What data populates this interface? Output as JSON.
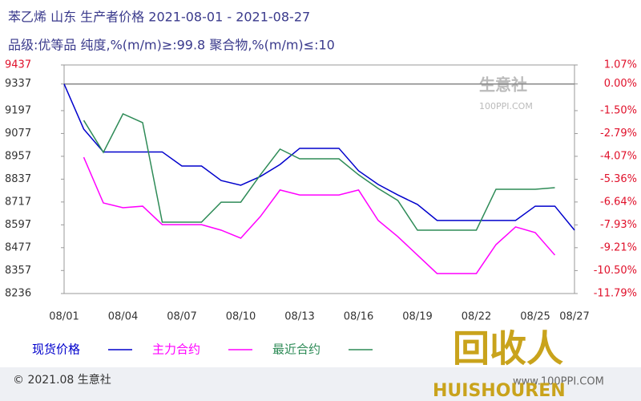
{
  "chart_data": {
    "type": "line",
    "title": "苯乙烯 山东 生产者价格 2021-08-01 - 2021-08-27",
    "subtitle": "品级:优等品 纯度,%(m/m)≥:99.8 聚合物,%(m/m)≤:10",
    "categories": [
      "08/01",
      null,
      null,
      "08/04",
      null,
      null,
      "08/07",
      null,
      null,
      "08/10",
      null,
      null,
      "08/13",
      null,
      null,
      "08/16",
      null,
      null,
      "08/19",
      null,
      null,
      "08/22",
      null,
      null,
      "08/25",
      null,
      "08/27"
    ],
    "ylim": [
      8236,
      9437
    ],
    "yticks": [
      9437,
      9337,
      9197,
      9077,
      8957,
      8837,
      8717,
      8597,
      8477,
      8357,
      8236
    ],
    "y2lim": [
      -11.79,
      1.07
    ],
    "y2ticks": [
      {
        "value": 1.07,
        "label": "1.07%"
      },
      {
        "value": 0,
        "label": "0.00%"
      },
      {
        "value": -1.5,
        "label": "-1.50%"
      },
      {
        "value": -2.79,
        "label": "-2.79%"
      },
      {
        "value": -4.07,
        "label": "-4.07%"
      },
      {
        "value": -5.36,
        "label": "-5.36%"
      },
      {
        "value": -6.64,
        "label": "-6.64%"
      },
      {
        "value": -7.93,
        "label": "-7.93%"
      },
      {
        "value": -9.21,
        "label": "-9.21%"
      },
      {
        "value": -10.5,
        "label": "-10.50%"
      },
      {
        "value": -11.79,
        "label": "-11.79%"
      }
    ],
    "reference_line": 9337,
    "series": [
      {
        "name": "现货价格",
        "color": "#0000cc",
        "values": [
          9337,
          9100,
          8980,
          8980,
          8980,
          8980,
          8906,
          8906,
          8830,
          8805,
          8851,
          8914,
          8999,
          8999,
          8999,
          8881,
          8809,
          8754,
          8704,
          8620,
          8620,
          8620,
          8620,
          8620,
          8695,
          8695,
          8569
        ]
      },
      {
        "name": "主力合约",
        "color": "#ff00ff",
        "values": [
          null,
          8952,
          8712,
          8687,
          8695,
          8598,
          8598,
          8598,
          8569,
          8527,
          8641,
          8780,
          8754,
          8754,
          8754,
          8780,
          8620,
          8535,
          8438,
          8341,
          8341,
          8341,
          8493,
          8586,
          8556,
          8438,
          null
        ]
      },
      {
        "name": "最近合约",
        "color": "#2e8b57",
        "values": [
          null,
          9146,
          8978,
          9180,
          9134,
          8611,
          8611,
          8611,
          8716,
          8716,
          8860,
          8995,
          8944,
          8944,
          8944,
          8860,
          8788,
          8725,
          8569,
          8569,
          8569,
          8569,
          8784,
          8784,
          8784,
          8792,
          null
        ]
      }
    ],
    "footer": "© 2021.08 生意社",
    "watermarks": [
      "生意社",
      "100PPI.COM",
      "www.100PPI.COM",
      "回收人",
      "HUISHOUREN"
    ]
  }
}
